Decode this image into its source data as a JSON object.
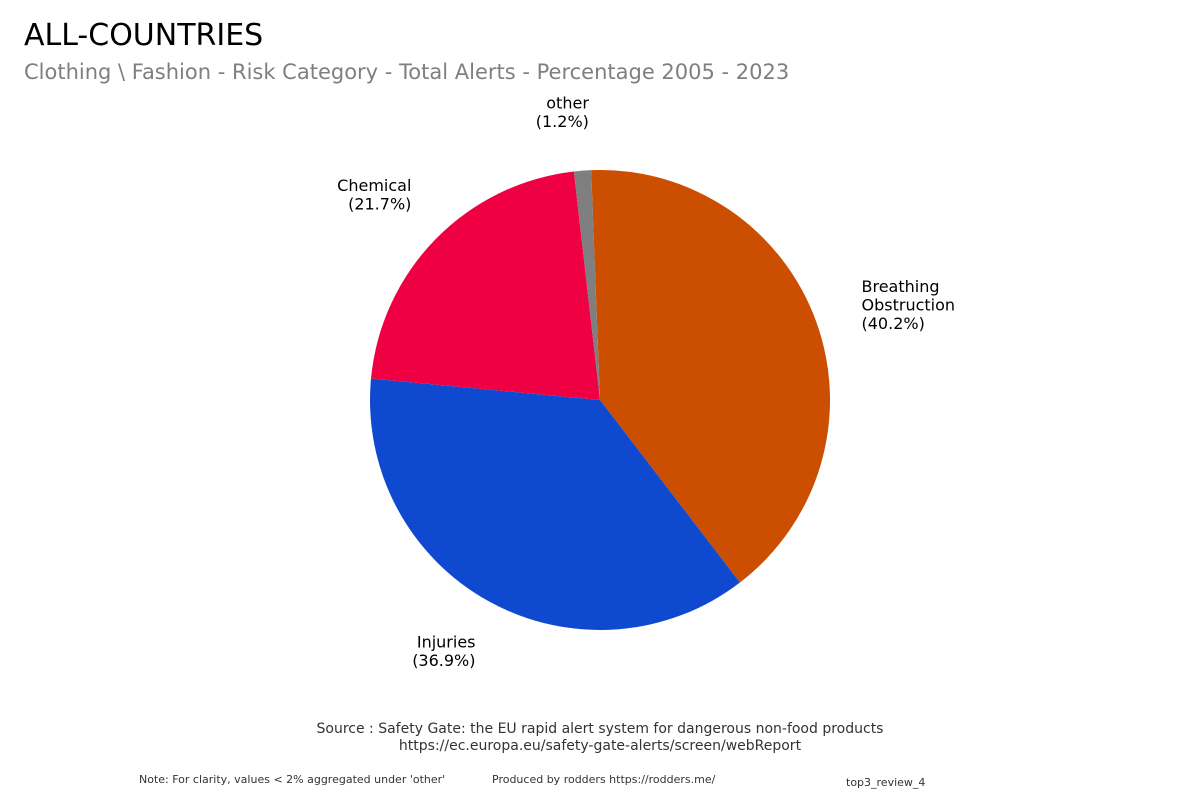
{
  "header": {
    "title": "ALL-COUNTRIES",
    "subtitle": "Clothing \\ Fashion - Risk Category - Total Alerts - Percentage 2005 - 2023"
  },
  "chart_data": {
    "type": "pie",
    "title": "ALL-COUNTRIES",
    "subtitle": "Clothing \\ Fashion - Risk Category - Total Alerts - Percentage 2005 - 2023",
    "slices": [
      {
        "label": "Breathing Obstruction",
        "label_lines": [
          "Breathing",
          "Obstruction"
        ],
        "value": 40.2,
        "value_label": "(40.2%)",
        "color": "#cc4e00"
      },
      {
        "label": "Injuries",
        "label_lines": [
          "Injuries"
        ],
        "value": 36.9,
        "value_label": "(36.9%)",
        "color": "#0f49d0"
      },
      {
        "label": "Chemical",
        "label_lines": [
          "Chemical"
        ],
        "value": 21.7,
        "value_label": "(21.7%)",
        "color": "#ef0043"
      },
      {
        "label": "other",
        "label_lines": [
          "other"
        ],
        "value": 1.2,
        "value_label": "(1.2%)",
        "color": "#7f7f7f"
      }
    ],
    "legend": "none",
    "label_position": "outside"
  },
  "footer": {
    "source_line1": "Source : Safety Gate: the EU rapid alert system for dangerous non-food products",
    "source_line2": "https://ec.europa.eu/safety-gate-alerts/screen/webReport",
    "note": "Note: For clarity, values < 2% aggregated under 'other'",
    "produced_by": "Produced by rodders https://rodders.me/",
    "tag": "top3_review_4"
  }
}
